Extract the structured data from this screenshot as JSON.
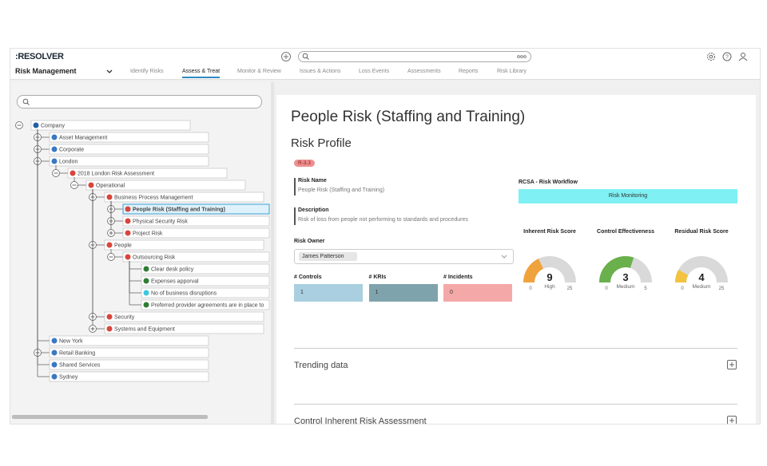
{
  "header": {
    "logo": ":RESOLVER",
    "app": "Risk Management",
    "tabs": [
      "Identify Risks",
      "Assess & Treat",
      "Monitor & Review",
      "Issues & Actions",
      "Loss Events",
      "Assessments",
      "Reports",
      "Risk Library"
    ],
    "active_tab": 1
  },
  "tree": {
    "nodes": [
      {
        "label": "Company",
        "level": 0,
        "color": "#1f5fa8",
        "expander": "minus"
      },
      {
        "label": "Asset Management",
        "level": 1,
        "color": "#3a78c2",
        "expander": "plus"
      },
      {
        "label": "Corporate",
        "level": 1,
        "color": "#3a78c2",
        "expander": "plus"
      },
      {
        "label": "London",
        "level": 1,
        "color": "#3a78c2",
        "expander": "minus"
      },
      {
        "label": "2018 London Risk Assessment",
        "level": 2,
        "color": "#d9453c",
        "expander": "minus"
      },
      {
        "label": "Operational",
        "level": 3,
        "color": "#d9453c",
        "expander": "minus"
      },
      {
        "label": "Business Process Management",
        "level": 4,
        "color": "#d9453c",
        "expander": "minus"
      },
      {
        "label": "People Risk (Staffing and Training)",
        "level": 5,
        "color": "#d9453c",
        "expander": "plus",
        "selected": true
      },
      {
        "label": "Physical Security Risk",
        "level": 5,
        "color": "#d9453c",
        "expander": "plus"
      },
      {
        "label": "Project Risk",
        "level": 5,
        "color": "#d9453c",
        "expander": "plus"
      },
      {
        "label": "People",
        "level": 4,
        "color": "#d9453c",
        "expander": "minus"
      },
      {
        "label": "Outsourcing Risk",
        "level": 5,
        "color": "#d9453c",
        "expander": "minus"
      },
      {
        "label": "Clear desk policy",
        "level": 6,
        "color": "#2e7d32"
      },
      {
        "label": "Expenses apporval",
        "level": 6,
        "color": "#2e7d32"
      },
      {
        "label": "No of business disruptions",
        "level": 6,
        "color": "#3cc6e0"
      },
      {
        "label": "Preferred provider agreements are in place to",
        "level": 6,
        "color": "#2e7d32"
      },
      {
        "label": "Security",
        "level": 4,
        "color": "#d9453c",
        "expander": "plus"
      },
      {
        "label": "Systems and Equipment",
        "level": 4,
        "color": "#d9453c",
        "expander": "plus"
      },
      {
        "label": "New York",
        "level": 1,
        "color": "#3a78c2"
      },
      {
        "label": "Retail Banking",
        "level": 1,
        "color": "#3a78c2",
        "expander": "plus"
      },
      {
        "label": "Shared Services",
        "level": 1,
        "color": "#3a78c2"
      },
      {
        "label": "Sydney",
        "level": 1,
        "color": "#3a78c2"
      }
    ]
  },
  "detail": {
    "title": "People Risk (Staffing and Training)",
    "section": "Risk Profile",
    "badge": "R-3.3",
    "fields": [
      {
        "label": "Risk Name",
        "value": "People Risk (Staffing and Training)"
      },
      {
        "label": "Description",
        "value": "Risk of loss from people not performing to standards and procedures"
      }
    ],
    "owner_label": "Risk Owner",
    "owner": "James Patterson",
    "counts": [
      {
        "label": "# Controls",
        "value": 1,
        "color": "#a9cfe0"
      },
      {
        "label": "# KRIs",
        "value": 1,
        "color": "#7fa3ad"
      },
      {
        "label": "# Incidents",
        "value": 0,
        "color": "#f4a9a8"
      }
    ],
    "workflow_label": "RCSA - Risk Workflow",
    "workflow_state": "Risk Monitoring",
    "scores": [
      {
        "label": "Inherent Risk Score",
        "value": 9,
        "rating": "High",
        "min": 0,
        "max": 25,
        "color": "#f0a23c"
      },
      {
        "label": "Control Effectiveness",
        "value": 3,
        "rating": "Medium",
        "min": 0,
        "max": 5,
        "color": "#6ab04c"
      },
      {
        "label": "Residual Risk Score",
        "value": 4,
        "rating": "Medium",
        "min": 0,
        "max": 25,
        "color": "#f3c23f"
      }
    ],
    "sections": [
      "Trending data",
      "Control Inherent Risk Assessment"
    ]
  }
}
